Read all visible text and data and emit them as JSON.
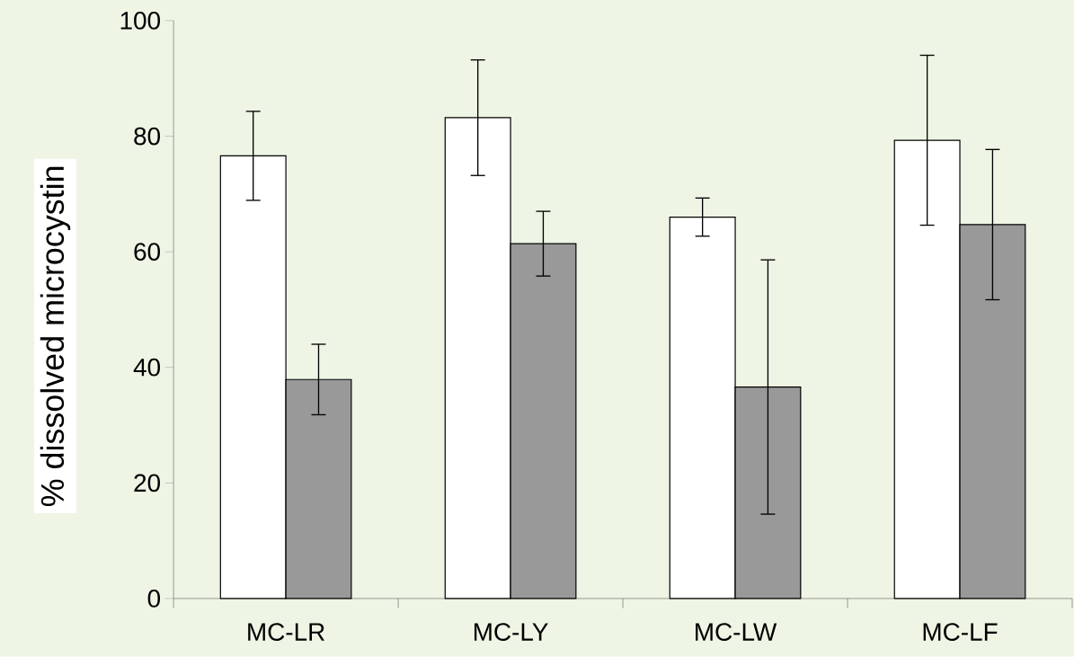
{
  "chart_data": {
    "type": "bar",
    "ylabel": "% dissolved microcystin",
    "categories": [
      "MC-LR",
      "MC-LY",
      "MC-LW",
      "MC-LF"
    ],
    "series": [
      {
        "color": "#ffffff",
        "values": [
          76.6,
          83.2,
          66.0,
          79.3
        ],
        "errors": [
          7.7,
          10.0,
          3.3,
          14.7
        ]
      },
      {
        "color": "#999999",
        "values": [
          37.9,
          61.4,
          36.6,
          64.7
        ],
        "errors": [
          6.1,
          5.6,
          22.0,
          13.0
        ]
      }
    ],
    "ylim": [
      0,
      100
    ],
    "yticks": [
      0,
      20,
      40,
      60,
      80,
      100
    ]
  }
}
